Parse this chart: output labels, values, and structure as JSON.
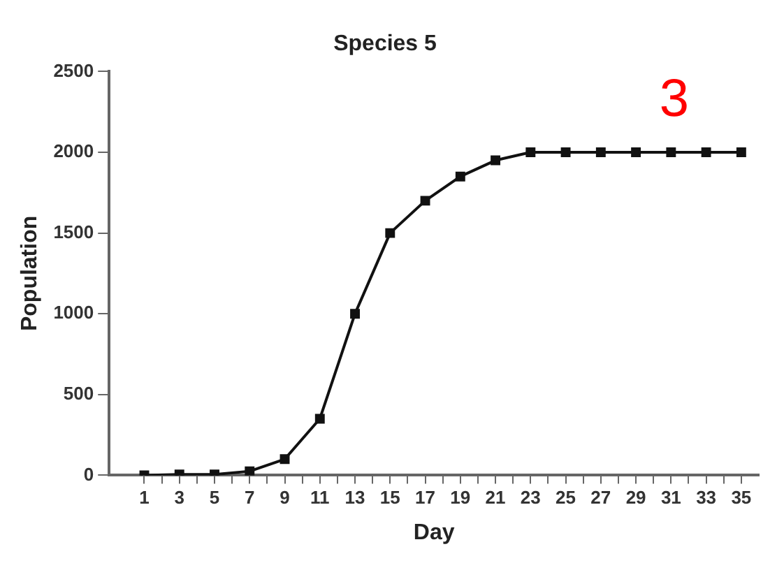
{
  "chart_data": {
    "type": "line",
    "title": "Species 5",
    "xlabel": "Day",
    "ylabel": "Population",
    "x": [
      1,
      3,
      5,
      7,
      9,
      11,
      13,
      15,
      17,
      19,
      21,
      23,
      25,
      27,
      29,
      31,
      33,
      35
    ],
    "series": [
      {
        "color": "#111111",
        "values": [
          0,
          5,
          5,
          25,
          100,
          350,
          1000,
          1500,
          1700,
          1850,
          1950,
          2000,
          2000,
          2000,
          2000,
          2000,
          2000,
          2000
        ]
      }
    ],
    "xlim": [
      -1,
      36
    ],
    "xticks": [
      1,
      {
        "value": 2,
        "label": null
      },
      3,
      {
        "value": 4,
        "label": null
      },
      5,
      {
        "value": 6,
        "label": null
      },
      7,
      {
        "value": 8,
        "label": null
      },
      9,
      {
        "value": 10,
        "label": null
      },
      11,
      {
        "value": 12,
        "label": null
      },
      13,
      {
        "value": 14,
        "label": null
      },
      15,
      {
        "value": 16,
        "label": null
      },
      17,
      {
        "value": 18,
        "label": null
      },
      19,
      {
        "value": 20,
        "label": null
      },
      21,
      {
        "value": 22,
        "label": null
      },
      23,
      {
        "value": 24,
        "label": null
      },
      25,
      {
        "value": 26,
        "label": null
      },
      27,
      {
        "value": 28,
        "label": null
      },
      29,
      {
        "value": 30,
        "label": null
      },
      31,
      {
        "value": 32,
        "label": null
      },
      33,
      {
        "value": 34,
        "label": null
      },
      35
    ],
    "ylim": [
      0,
      2500
    ],
    "yticks": [
      0,
      500,
      1000,
      1500,
      2000,
      2500
    ],
    "grid": false,
    "legend": false,
    "marker": "square",
    "line_style": "solid",
    "annotations": [
      "3"
    ]
  }
}
